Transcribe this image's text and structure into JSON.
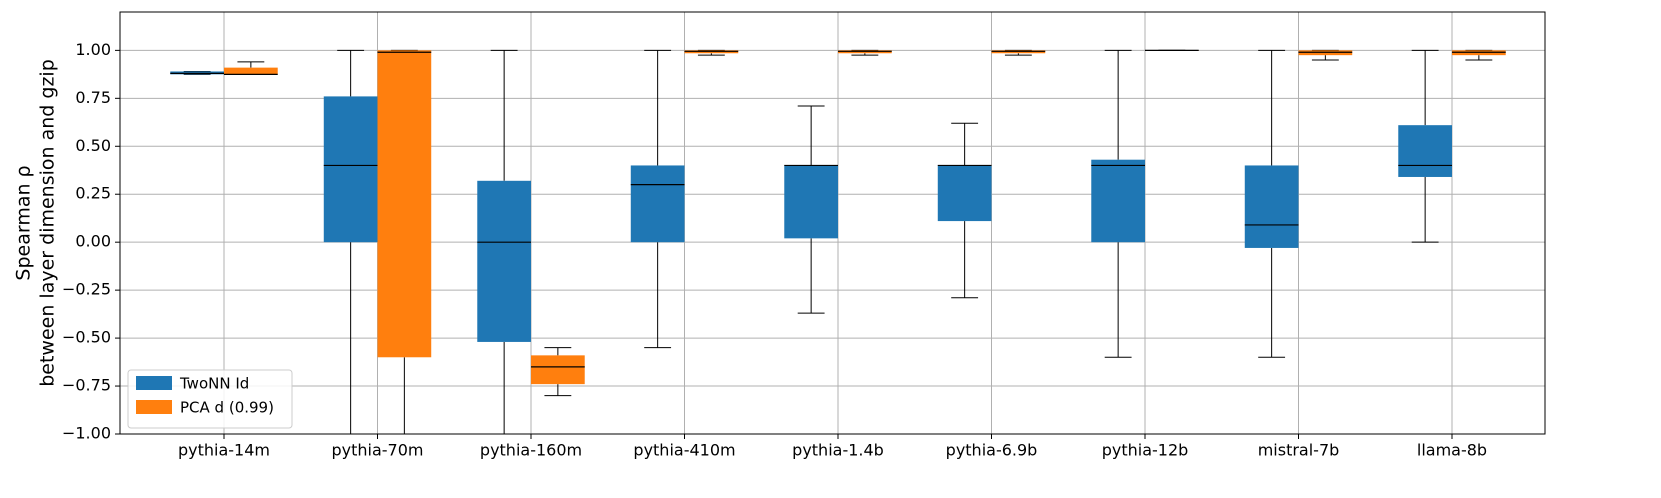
{
  "chart_data": {
    "type": "box",
    "ylabel": [
      "Spearman ρ",
      "between layer dimension and gzip"
    ],
    "categories": [
      "pythia-14m",
      "pythia-70m",
      "pythia-160m",
      "pythia-410m",
      "pythia-1.4b",
      "pythia-6.9b",
      "pythia-12b",
      "mistral-7b",
      "llama-8b"
    ],
    "series": [
      {
        "name": "TwoNN Id",
        "color": "#1f77b4",
        "values": [
          {
            "low": 0.875,
            "q1": 0.875,
            "median": 0.88,
            "q3": 0.89,
            "high": 0.89
          },
          {
            "low": -1.0,
            "q1": 0.0,
            "median": 0.4,
            "q3": 0.76,
            "high": 1.0
          },
          {
            "low": -1.0,
            "q1": -0.52,
            "median": 0.0,
            "q3": 0.32,
            "high": 1.0
          },
          {
            "low": -0.55,
            "q1": 0.0,
            "median": 0.3,
            "q3": 0.4,
            "high": 1.0
          },
          {
            "low": -0.37,
            "q1": 0.02,
            "median": 0.4,
            "q3": 0.4,
            "high": 0.71
          },
          {
            "low": -0.29,
            "q1": 0.11,
            "median": 0.4,
            "q3": 0.4,
            "high": 0.62
          },
          {
            "low": -0.6,
            "q1": 0.0,
            "median": 0.4,
            "q3": 0.43,
            "high": 1.0
          },
          {
            "low": -0.6,
            "q1": -0.03,
            "median": 0.09,
            "q3": 0.4,
            "high": 1.0
          },
          {
            "low": 0.0,
            "q1": 0.34,
            "median": 0.4,
            "q3": 0.61,
            "high": 1.0
          }
        ]
      },
      {
        "name": "PCA d (0.99)",
        "color": "#ff7f0e",
        "values": [
          {
            "low": 0.875,
            "q1": 0.875,
            "median": 0.875,
            "q3": 0.91,
            "high": 0.94
          },
          {
            "low": -1.0,
            "q1": -0.6,
            "median": 0.99,
            "q3": 1.0,
            "high": 1.0
          },
          {
            "low": -0.8,
            "q1": -0.74,
            "median": -0.65,
            "q3": -0.59,
            "high": -0.55
          },
          {
            "low": 0.975,
            "q1": 0.985,
            "median": 0.995,
            "q3": 1.0,
            "high": 1.0
          },
          {
            "low": 0.975,
            "q1": 0.985,
            "median": 0.995,
            "q3": 1.0,
            "high": 1.0
          },
          {
            "low": 0.975,
            "q1": 0.985,
            "median": 0.995,
            "q3": 1.0,
            "high": 1.0
          },
          {
            "low": 1.0,
            "q1": 1.0,
            "median": 1.0,
            "q3": 1.0,
            "high": 1.0
          },
          {
            "low": 0.95,
            "q1": 0.975,
            "median": 0.99,
            "q3": 1.0,
            "high": 1.0
          },
          {
            "low": 0.95,
            "q1": 0.975,
            "median": 0.99,
            "q3": 1.0,
            "high": 1.0
          }
        ]
      }
    ],
    "ylim": [
      -1.0,
      1.2
    ],
    "yticks": [
      {
        "value": -1.0,
        "label": "−1.00"
      },
      {
        "value": -0.75,
        "label": "−0.75"
      },
      {
        "value": -0.5,
        "label": "−0.50"
      },
      {
        "value": -0.25,
        "label": "−0.25"
      },
      {
        "value": 0,
        "label": "0.00"
      },
      {
        "value": 0.25,
        "label": "0.25"
      },
      {
        "value": 0.5,
        "label": "0.50"
      },
      {
        "value": 0.75,
        "label": "0.75"
      },
      {
        "value": 1.0,
        "label": "1.00"
      }
    ],
    "grid": true,
    "legend": "lower left"
  }
}
